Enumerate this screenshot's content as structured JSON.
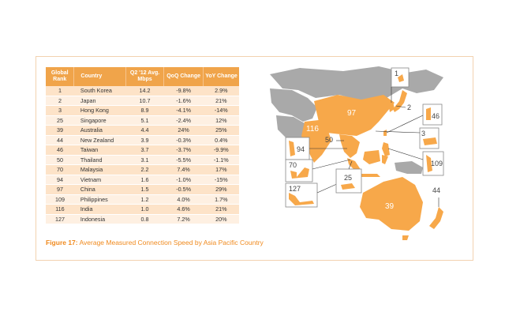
{
  "table": {
    "headers": {
      "rank": "Global Rank",
      "country": "Country",
      "mbps": "Q2 '12 Avg. Mbps",
      "qoq": "QoQ Change",
      "yoy": "YoY Change"
    },
    "rows": [
      {
        "rank": "1",
        "country": "South Korea",
        "mbps": "14.2",
        "qoq": "-9.8%",
        "yoy": "2.9%"
      },
      {
        "rank": "2",
        "country": "Japan",
        "mbps": "10.7",
        "qoq": "-1.6%",
        "yoy": "21%"
      },
      {
        "rank": "3",
        "country": "Hong Kong",
        "mbps": "8.9",
        "qoq": "-4.1%",
        "yoy": "-14%"
      },
      {
        "rank": "25",
        "country": "Singapore",
        "mbps": "5.1",
        "qoq": "-2.4%",
        "yoy": "12%"
      },
      {
        "rank": "39",
        "country": "Australia",
        "mbps": "4.4",
        "qoq": "24%",
        "yoy": "25%"
      },
      {
        "rank": "44",
        "country": "New Zealand",
        "mbps": "3.9",
        "qoq": "-0.3%",
        "yoy": "0.4%"
      },
      {
        "rank": "46",
        "country": "Taiwan",
        "mbps": "3.7",
        "qoq": "-3.7%",
        "yoy": "-9.9%"
      },
      {
        "rank": "50",
        "country": "Thailand",
        "mbps": "3.1",
        "qoq": "-5.5%",
        "yoy": "-1.1%"
      },
      {
        "rank": "70",
        "country": "Malaysia",
        "mbps": "2.2",
        "qoq": "7.4%",
        "yoy": "17%"
      },
      {
        "rank": "94",
        "country": "Vietnam",
        "mbps": "1.6",
        "qoq": "-1.0%",
        "yoy": "-15%"
      },
      {
        "rank": "97",
        "country": "China",
        "mbps": "1.5",
        "qoq": "-0.5%",
        "yoy": "29%"
      },
      {
        "rank": "109",
        "country": "Philippines",
        "mbps": "1.2",
        "qoq": "4.0%",
        "yoy": "1.7%"
      },
      {
        "rank": "116",
        "country": "India",
        "mbps": "1.0",
        "qoq": "4.6%",
        "yoy": "21%"
      },
      {
        "rank": "127",
        "country": "Indonesia",
        "mbps": "0.8",
        "qoq": "7.2%",
        "yoy": "20%"
      }
    ]
  },
  "caption": {
    "label": "Figure 17:",
    "text": " Average Measured Connection Speed by Asia Pacific Country"
  },
  "map_labels": {
    "korea": "1",
    "japan": "2",
    "hongkong": "3",
    "singapore": "25",
    "australia": "39",
    "newzealand": "44",
    "taiwan": "46",
    "thailand": "50",
    "malaysia": "70",
    "vietnam": "94",
    "china": "97",
    "philippines": "109",
    "india": "116",
    "indonesia": "127"
  },
  "colors": {
    "accent": "#f0a44a",
    "land_highlight": "#f7a84a",
    "land_other": "#a9a9a9",
    "caption": "#f08a1e"
  }
}
